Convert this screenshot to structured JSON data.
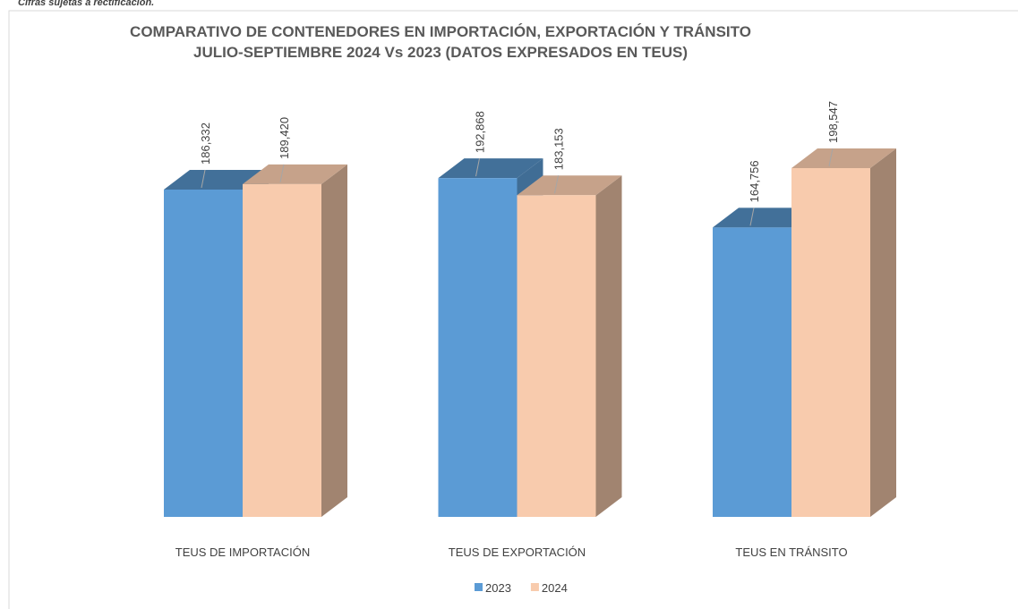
{
  "note": "Cifras sujetas a rectificación.",
  "chart_data": {
    "type": "bar3d",
    "title": "COMPARATIVO  DE CONTENEDORES EN IMPORTACIÓN, EXPORTACIÓN Y TRÁNSITO",
    "subtitle": "JULIO-SEPTIEMBRE 2024 Vs 2023 (DATOS EXPRESADOS EN TEUS)",
    "categories": [
      "TEUS DE IMPORTACIÓN",
      "TEUS DE EXPORTACIÓN",
      "TEUS EN TRÁNSITO"
    ],
    "series": [
      {
        "name": "2023",
        "color": "#5b9bd5",
        "values": [
          186332,
          192868,
          164756
        ],
        "value_labels": [
          "186,332",
          "192,868",
          "164,756"
        ]
      },
      {
        "name": "2024",
        "color": "#f8cbad",
        "values": [
          189420,
          183153,
          198547
        ],
        "value_labels": [
          "189,420",
          "183,153",
          "198,547"
        ]
      }
    ],
    "legend": "bottom"
  }
}
